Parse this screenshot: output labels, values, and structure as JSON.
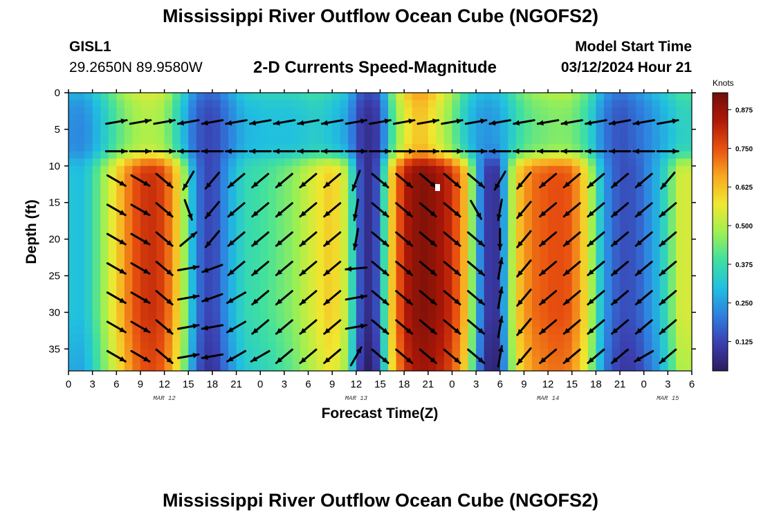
{
  "header": {
    "title": "Mississippi River Outflow Ocean Cube (NGOFS2)",
    "station_id": "GISL1",
    "station_coords": "29.2650N  89.9580W",
    "subtitle": "2-D Currents Speed-Magnitude",
    "model_start_label": "Model Start Time",
    "model_start_value": "03/12/2024 Hour 21"
  },
  "footer": {
    "title": "Mississippi River Outflow Ocean Cube (NGOFS2)"
  },
  "chart_data": {
    "type": "heatmap",
    "title": "2-D Currents Speed-Magnitude",
    "xlabel": "Forecast Time(Z)",
    "ylabel": "Depth (ft)",
    "x_unit": "hours from Mar 12 00Z",
    "xlim": [
      0,
      78
    ],
    "ylim": [
      0,
      38
    ],
    "x_tick_values": [
      0,
      3,
      6,
      9,
      12,
      15,
      18,
      21,
      24,
      27,
      30,
      33,
      36,
      39,
      42,
      45,
      48,
      51,
      54,
      57,
      60,
      63,
      66,
      69,
      72,
      75,
      78
    ],
    "x_tick_labels": [
      "0",
      "3",
      "6",
      "9",
      "12",
      "15",
      "18",
      "21",
      "0",
      "3",
      "6",
      "9",
      "12",
      "15",
      "18",
      "21",
      "0",
      "3",
      "6",
      "9",
      "12",
      "15",
      "18",
      "21",
      "0",
      "3",
      "6"
    ],
    "y_ticks": [
      0,
      5,
      10,
      15,
      20,
      25,
      30,
      35
    ],
    "date_labels": [
      {
        "text": "MAR 12",
        "hour": 12
      },
      {
        "text": "MAR 13",
        "hour": 36
      },
      {
        "text": "MAR 14",
        "hour": 60
      },
      {
        "text": "MAR 15",
        "hour": 75
      }
    ],
    "colorbar": {
      "label": "Knots",
      "min": 0.03,
      "max": 0.93,
      "ticks": [
        0.125,
        0.25,
        0.375,
        0.5,
        0.625,
        0.75,
        0.875
      ],
      "tick_labels": [
        "0.125",
        "0.250",
        "0.375",
        "0.500",
        "0.625",
        "0.750",
        "0.875"
      ],
      "colors": [
        "#2b1a5e",
        "#3b3fb0",
        "#2f7fe0",
        "#20c0e0",
        "#40e0a0",
        "#a0f050",
        "#f0e830",
        "#f8a820",
        "#e85010",
        "#b01808",
        "#701008"
      ]
    },
    "surface_layer_depth_ft": 9,
    "column_speeds": [
      {
        "hour": 0,
        "surface": 0.23,
        "deep": 0.31
      },
      {
        "hour": 2,
        "surface": 0.22,
        "deep": 0.3
      },
      {
        "hour": 4,
        "surface": 0.3,
        "deep": 0.45
      },
      {
        "hour": 6,
        "surface": 0.4,
        "deep": 0.6
      },
      {
        "hour": 8,
        "surface": 0.47,
        "deep": 0.74
      },
      {
        "hour": 10,
        "surface": 0.5,
        "deep": 0.81
      },
      {
        "hour": 12,
        "surface": 0.47,
        "deep": 0.77
      },
      {
        "hour": 14,
        "surface": 0.32,
        "deep": 0.57
      },
      {
        "hour": 16,
        "surface": 0.16,
        "deep": 0.2
      },
      {
        "hour": 18,
        "surface": 0.12,
        "deep": 0.11
      },
      {
        "hour": 20,
        "surface": 0.2,
        "deep": 0.26
      },
      {
        "hour": 22,
        "surface": 0.28,
        "deep": 0.36
      },
      {
        "hour": 25,
        "surface": 0.3,
        "deep": 0.4
      },
      {
        "hour": 28,
        "surface": 0.3,
        "deep": 0.46
      },
      {
        "hour": 31,
        "surface": 0.33,
        "deep": 0.56
      },
      {
        "hour": 33,
        "surface": 0.3,
        "deep": 0.62
      },
      {
        "hour": 35,
        "surface": 0.25,
        "deep": 0.5
      },
      {
        "hour": 36,
        "surface": 0.15,
        "deep": 0.22
      },
      {
        "hour": 37,
        "surface": 0.08,
        "deep": 0.08
      },
      {
        "hour": 38,
        "surface": 0.09,
        "deep": 0.08
      },
      {
        "hour": 39,
        "surface": 0.12,
        "deep": 0.2
      },
      {
        "hour": 40,
        "surface": 0.33,
        "deep": 0.55
      },
      {
        "hour": 42,
        "surface": 0.55,
        "deep": 0.83
      },
      {
        "hour": 44,
        "surface": 0.63,
        "deep": 0.91
      },
      {
        "hour": 46,
        "surface": 0.55,
        "deep": 0.88
      },
      {
        "hour": 48,
        "surface": 0.44,
        "deep": 0.8
      },
      {
        "hour": 50,
        "surface": 0.3,
        "deep": 0.6
      },
      {
        "hour": 51,
        "surface": 0.26,
        "deep": 0.32
      },
      {
        "hour": 52,
        "surface": 0.24,
        "deep": 0.14
      },
      {
        "hour": 53,
        "surface": 0.24,
        "deep": 0.07
      },
      {
        "hour": 54,
        "surface": 0.26,
        "deep": 0.12
      },
      {
        "hour": 55,
        "surface": 0.3,
        "deep": 0.4
      },
      {
        "hour": 56,
        "surface": 0.36,
        "deep": 0.6
      },
      {
        "hour": 58,
        "surface": 0.42,
        "deep": 0.72
      },
      {
        "hour": 61,
        "surface": 0.45,
        "deep": 0.76
      },
      {
        "hour": 63,
        "surface": 0.44,
        "deep": 0.74
      },
      {
        "hour": 65,
        "surface": 0.36,
        "deep": 0.56
      },
      {
        "hour": 67,
        "surface": 0.2,
        "deep": 0.25
      },
      {
        "hour": 69,
        "surface": 0.14,
        "deep": 0.14
      },
      {
        "hour": 71,
        "surface": 0.18,
        "deep": 0.15
      },
      {
        "hour": 74,
        "surface": 0.26,
        "deep": 0.3
      },
      {
        "hour": 77,
        "surface": 0.35,
        "deep": 0.58
      },
      {
        "hour": 78,
        "surface": 0.33,
        "deep": 0.5
      }
    ],
    "vector_hours": [
      6,
      9,
      12,
      15,
      18,
      21,
      24,
      27,
      30,
      33,
      36,
      39,
      42,
      45,
      48,
      51,
      54,
      57,
      60,
      63,
      66,
      69,
      72,
      75
    ],
    "vector_depths_ft": [
      4,
      8,
      12,
      16,
      20,
      24,
      28,
      32,
      36
    ],
    "vector_directions_deg": [
      [
        10,
        10,
        10,
        -170,
        -170,
        -170,
        -170,
        -170,
        -170,
        -170,
        10,
        10,
        10,
        10,
        10,
        10,
        -170,
        -170,
        -170,
        -170,
        -170,
        -170,
        -170,
        10
      ],
      [
        0,
        0,
        0,
        180,
        180,
        180,
        180,
        180,
        180,
        180,
        0,
        0,
        0,
        0,
        0,
        0,
        180,
        180,
        180,
        180,
        180,
        180,
        180,
        0
      ],
      [
        -30,
        -30,
        -40,
        -120,
        -130,
        -140,
        -140,
        -140,
        -140,
        -140,
        -110,
        -40,
        -40,
        -40,
        -40,
        -40,
        -120,
        -130,
        -140,
        -140,
        -140,
        -140,
        -140,
        -130
      ],
      [
        -30,
        -30,
        -40,
        -70,
        -130,
        -140,
        -140,
        -140,
        -140,
        -140,
        -100,
        -40,
        -40,
        -40,
        -40,
        -60,
        -100,
        -130,
        -140,
        -140,
        -140,
        -140,
        -140,
        -140
      ],
      [
        -30,
        -30,
        -40,
        40,
        -130,
        -140,
        -140,
        -140,
        -140,
        -140,
        -100,
        -40,
        -40,
        -40,
        -40,
        -40,
        -90,
        -130,
        -140,
        -140,
        -140,
        -140,
        -140,
        -140
      ],
      [
        -30,
        -30,
        -40,
        10,
        -160,
        -140,
        -140,
        -140,
        -140,
        -140,
        -175,
        -40,
        -40,
        -40,
        -40,
        -40,
        80,
        -130,
        -140,
        -140,
        -140,
        -140,
        -140,
        -140
      ],
      [
        -30,
        -30,
        -40,
        10,
        -160,
        -150,
        -140,
        -140,
        -140,
        -140,
        10,
        -40,
        -40,
        -40,
        -40,
        -40,
        80,
        -130,
        -140,
        -140,
        -140,
        -140,
        -140,
        -140
      ],
      [
        -30,
        -30,
        -40,
        10,
        -170,
        -150,
        -140,
        -140,
        -140,
        -140,
        10,
        -40,
        -40,
        -40,
        -40,
        -40,
        80,
        -130,
        -140,
        -140,
        -140,
        -140,
        -140,
        -140
      ],
      [
        -30,
        -30,
        -40,
        10,
        -170,
        -150,
        -150,
        -140,
        -140,
        -140,
        60,
        -40,
        -40,
        -40,
        -40,
        -40,
        80,
        -130,
        -140,
        -140,
        -140,
        -140,
        -150,
        -140
      ]
    ]
  }
}
